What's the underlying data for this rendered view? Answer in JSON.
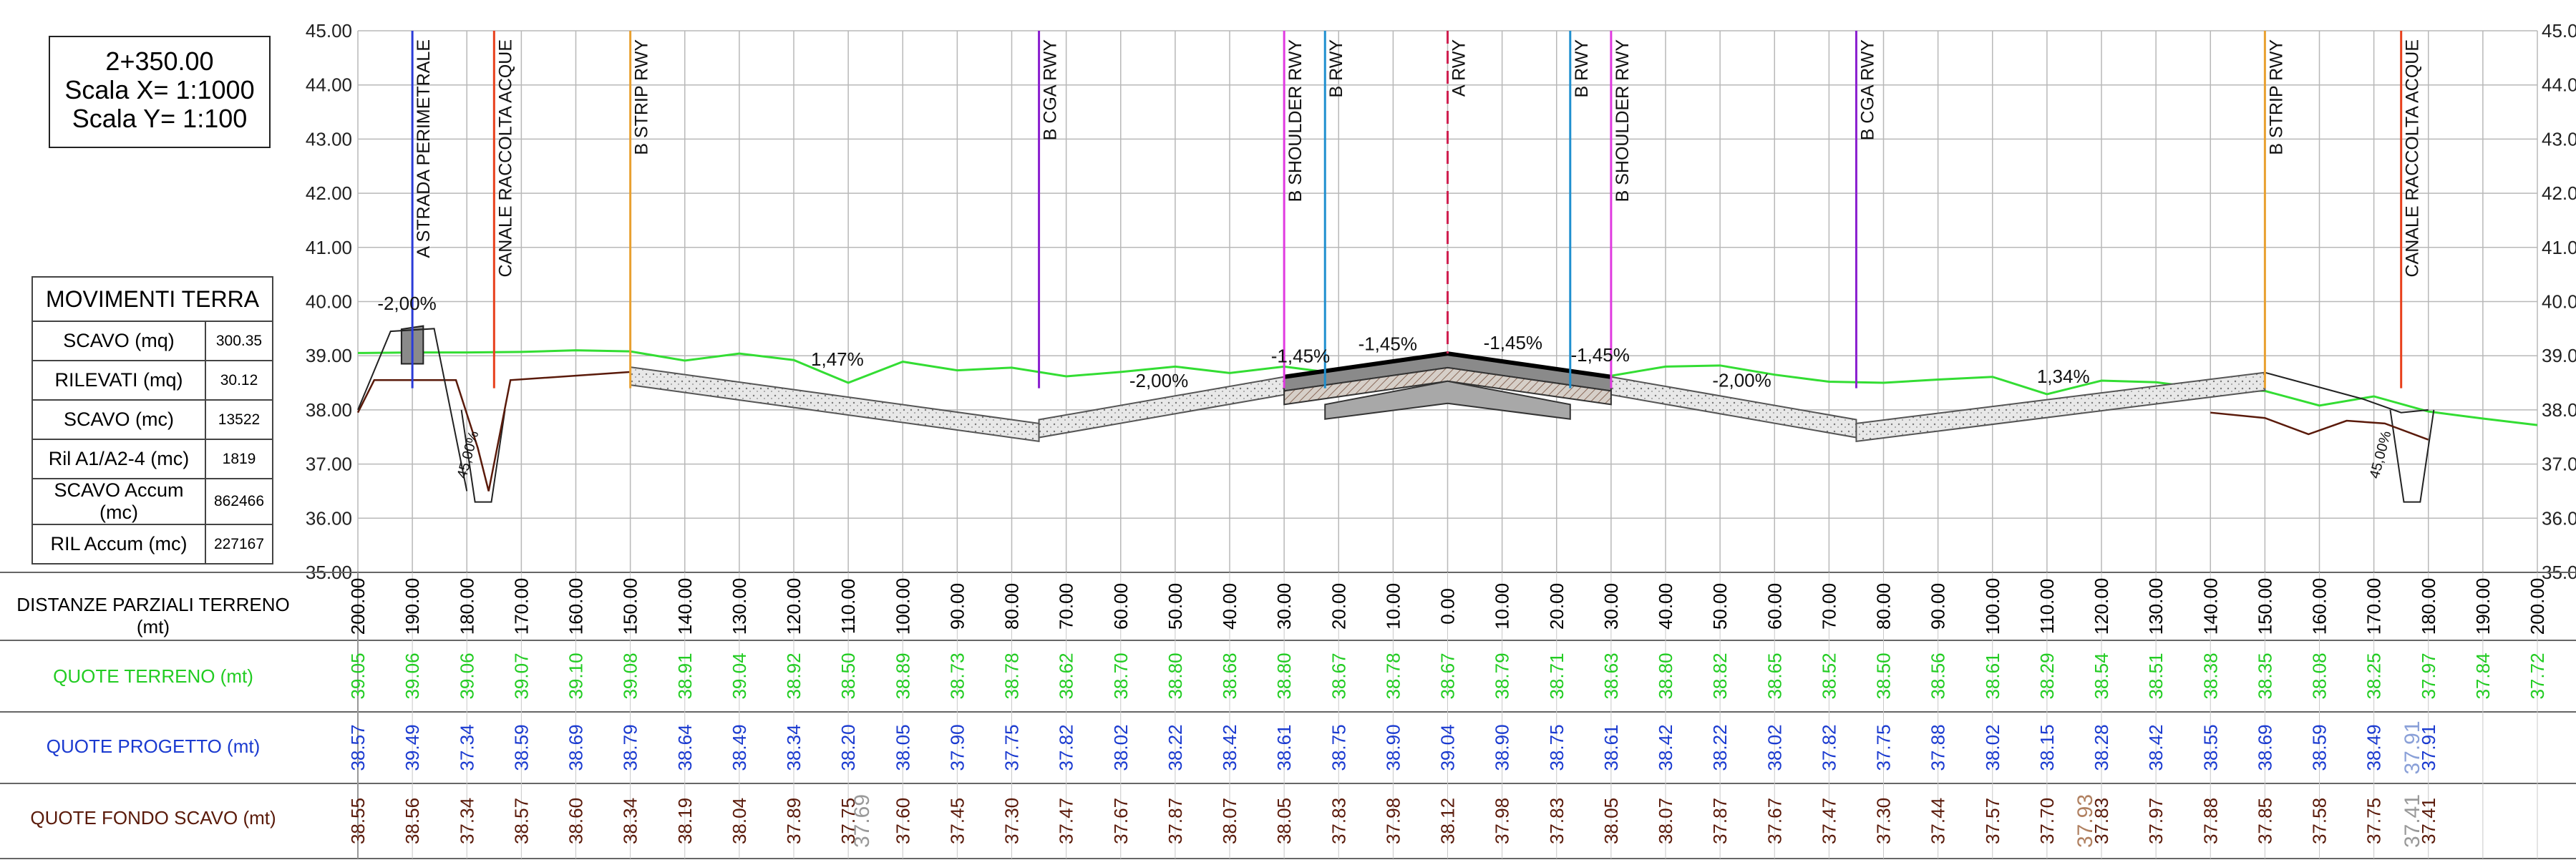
{
  "header": {
    "station": "2+350.00",
    "scale_x": "Scala X= 1:1000",
    "scale_y": "Scala Y= 1:100"
  },
  "movimenti_terra": {
    "title": "MOVIMENTI TERRA",
    "rows": [
      {
        "label": "SCAVO (mq)",
        "value": "300.35"
      },
      {
        "label": "RILEVATI (mq)",
        "value": "30.12"
      },
      {
        "label": "SCAVO (mc)",
        "value": "13522"
      },
      {
        "label": "Ril A1/A2-4 (mc)",
        "value": "1819"
      },
      {
        "label": "SCAVO Accum (mc)",
        "value": "862466"
      },
      {
        "label": "RIL Accum (mc)",
        "value": "227167"
      }
    ]
  },
  "elevation_ticks": [
    "45.00",
    "44.00",
    "43.00",
    "42.00",
    "41.00",
    "40.00",
    "39.00",
    "38.00",
    "37.00",
    "36.00",
    "35.00"
  ],
  "elevation_ticks_right": [
    "45.0",
    "44.0",
    "43.0",
    "42.0",
    "41.0",
    "40.0",
    "39.0",
    "38.0",
    "37.0",
    "36.0",
    "35.0"
  ],
  "markers": [
    {
      "offset": -190,
      "label": "A STRADA PERIMETRALE",
      "color": "#2a3bd8"
    },
    {
      "offset": -175,
      "label": "CANALE RACCOLTA ACQUE",
      "color": "#e8401c"
    },
    {
      "offset": -150,
      "label": "B STRIP RWY",
      "color": "#e8a030"
    },
    {
      "offset": -75,
      "label": "B CGA RWY",
      "color": "#8a1fcf"
    },
    {
      "offset": -30,
      "label": "B SHOULDER RWY",
      "color": "#e03ae0"
    },
    {
      "offset": -22.5,
      "label": "B RWY",
      "color": "#1f8fcf"
    },
    {
      "offset": 0,
      "label": "A RWY",
      "color": "#d02050"
    },
    {
      "offset": 22.5,
      "label": "B RWY",
      "color": "#1f8fcf"
    },
    {
      "offset": 30,
      "label": "B SHOULDER RWY",
      "color": "#e03ae0"
    },
    {
      "offset": 75,
      "label": "B CGA RWY",
      "color": "#8a1fcf"
    },
    {
      "offset": 150,
      "label": "B STRIP RWY",
      "color": "#e8a030"
    },
    {
      "offset": 175,
      "label": "CANALE RACCOLTA ACQUE",
      "color": "#e8401c"
    }
  ],
  "slopes": [
    {
      "text": "-2,00%",
      "offset": -191,
      "elev": 39.85
    },
    {
      "text": "1,47%",
      "offset": -112,
      "elev": 38.82
    },
    {
      "text": "-2,00%",
      "offset": -53,
      "elev": 38.42
    },
    {
      "text": "-1,45%",
      "offset": -27,
      "elev": 38.88
    },
    {
      "text": "-1,45%",
      "offset": -11,
      "elev": 39.1
    },
    {
      "text": "-1,45%",
      "offset": 12,
      "elev": 39.12
    },
    {
      "text": "-1,45%",
      "offset": 28,
      "elev": 38.9
    },
    {
      "text": "-2,00%",
      "offset": 54,
      "elev": 38.43
    },
    {
      "text": "1,34%",
      "offset": 113,
      "elev": 38.5
    }
  ],
  "ditch_slopes": [
    {
      "text": "45,00%",
      "offset": -179,
      "elev": 37.15
    },
    {
      "text": "45,00%",
      "offset": 172,
      "elev": 37.15
    }
  ],
  "rows": {
    "distanze": {
      "label": "DISTANZE PARZIALI TERRENO (mt)",
      "color": "#000000",
      "values": [
        "200.00",
        "190.00",
        "180.00",
        "170.00",
        "160.00",
        "150.00",
        "140.00",
        "130.00",
        "120.00",
        "110.00",
        "100.00",
        "90.00",
        "80.00",
        "70.00",
        "60.00",
        "50.00",
        "40.00",
        "30.00",
        "20.00",
        "10.00",
        "0.00",
        "10.00",
        "20.00",
        "30.00",
        "40.00",
        "50.00",
        "60.00",
        "70.00",
        "80.00",
        "90.00",
        "100.00",
        "110.00",
        "120.00",
        "130.00",
        "140.00",
        "150.00",
        "160.00",
        "170.00",
        "180.00",
        "190.00",
        "200.00"
      ]
    },
    "quote_terreno": {
      "label": "QUOTE TERRENO (mt)",
      "color": "#22cc22",
      "values": [
        "39.05",
        "39.06",
        "39.06",
        "39.07",
        "39.10",
        "39.08",
        "38.91",
        "39.04",
        "38.92",
        "38.50",
        "38.89",
        "38.73",
        "38.78",
        "38.62",
        "38.70",
        "38.80",
        "38.68",
        "38.80",
        "38.67",
        "38.78",
        "38.67",
        "38.79",
        "38.71",
        "38.63",
        "38.80",
        "38.82",
        "38.65",
        "38.52",
        "38.50",
        "38.56",
        "38.61",
        "38.29",
        "38.54",
        "38.51",
        "38.38",
        "38.35",
        "38.08",
        "38.25",
        "37.97",
        "37.84",
        "37.72"
      ]
    },
    "quote_progetto": {
      "label": "QUOTE PROGETTO (mt)",
      "color": "#1a3ad0",
      "values": [
        "38.57",
        "39.49",
        "37.34",
        "38.59",
        "38.69",
        "38.79",
        "38.64",
        "38.49",
        "38.34",
        "38.20",
        "38.05",
        "37.90",
        "37.75",
        "37.82",
        "38.02",
        "38.22",
        "38.42",
        "38.61",
        "38.75",
        "38.90",
        "39.04",
        "38.90",
        "38.75",
        "38.61",
        "38.42",
        "38.22",
        "38.02",
        "37.82",
        "37.75",
        "37.88",
        "38.02",
        "38.15",
        "38.28",
        "38.42",
        "38.55",
        "38.69",
        "38.59",
        "38.49",
        "37.91"
      ]
    },
    "quote_fondo": {
      "label": "QUOTE FONDO SCAVO (mt)",
      "color": "#5a1a0a",
      "values": [
        "38.55",
        "38.56",
        "37.34",
        "38.57",
        "38.60",
        "38.34",
        "38.19",
        "38.04",
        "37.89",
        "37.75",
        "37.60",
        "37.45",
        "37.30",
        "37.47",
        "37.67",
        "37.87",
        "38.07",
        "38.05",
        "37.83",
        "37.98",
        "38.12",
        "37.98",
        "37.83",
        "38.05",
        "38.07",
        "37.87",
        "37.67",
        "37.47",
        "37.30",
        "37.44",
        "37.57",
        "37.70",
        "37.83",
        "37.97",
        "37.88",
        "37.85",
        "37.58",
        "37.75",
        "37.41"
      ]
    }
  },
  "extra_labels": [
    {
      "text": "37.69",
      "offset": -107.5,
      "row": "quote_fondo",
      "color": "#999999"
    },
    {
      "text": "37.93",
      "offset": 117,
      "row": "quote_fondo",
      "color": "#b08060"
    },
    {
      "text": "37.91",
      "offset": 177,
      "row": "quote_progetto",
      "color": "#8aa0d8"
    },
    {
      "text": "37.41",
      "offset": 177,
      "row": "quote_fondo",
      "color": "#999999"
    }
  ]
}
